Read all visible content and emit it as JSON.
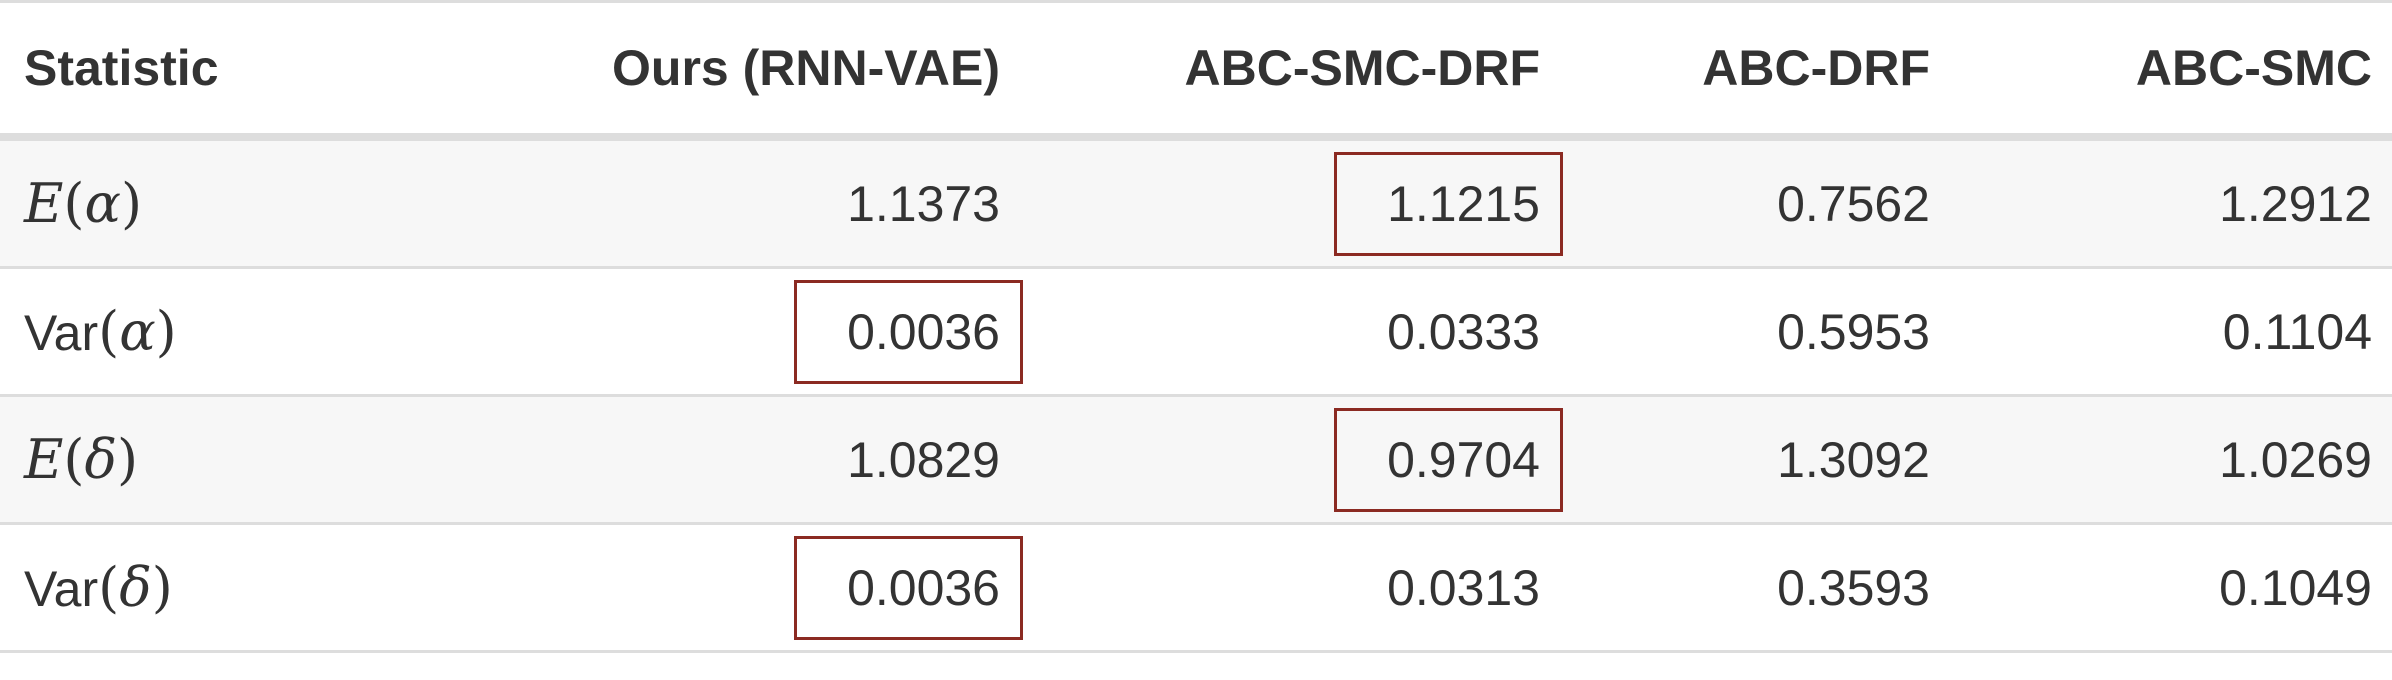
{
  "table": {
    "headers": [
      "Statistic",
      "Ours (RNN-VAE)",
      "ABC-SMC-DRF",
      "ABC-DRF",
      "ABC-SMC"
    ],
    "rows": [
      {
        "prefix": "",
        "func": "E",
        "symbol": "α",
        "values": [
          "1.1373",
          "1.1215",
          "0.7562",
          "1.2912"
        ],
        "highlight": [
          false,
          true,
          false,
          false
        ]
      },
      {
        "prefix": "Var",
        "func": "",
        "symbol": "α",
        "values": [
          "0.0036",
          "0.0333",
          "0.5953",
          "0.1104"
        ],
        "highlight": [
          true,
          false,
          false,
          false
        ]
      },
      {
        "prefix": "",
        "func": "E",
        "symbol": "δ",
        "values": [
          "1.0829",
          "0.9704",
          "1.3092",
          "1.0269"
        ],
        "highlight": [
          false,
          true,
          false,
          false
        ]
      },
      {
        "prefix": "Var",
        "func": "",
        "symbol": "δ",
        "values": [
          "0.0036",
          "0.0313",
          "0.3593",
          "0.1049"
        ],
        "highlight": [
          true,
          false,
          false,
          false
        ]
      }
    ],
    "colors": {
      "highlight_border": "#8b2a22",
      "row_shade": "#f7f7f7",
      "rule": "#dddddd",
      "text": "#333333"
    }
  }
}
